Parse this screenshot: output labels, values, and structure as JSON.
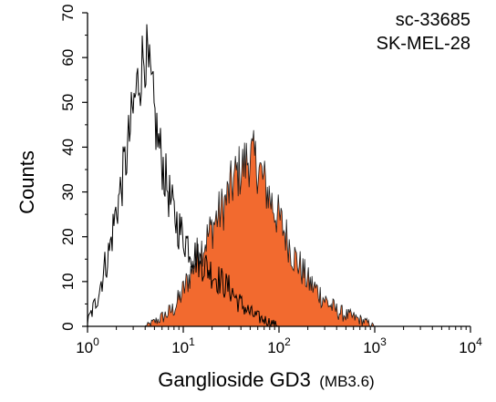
{
  "chart_data": {
    "type": "area",
    "title": "",
    "annotations": [
      "sc-33685",
      "SK-MEL-28"
    ],
    "xlabel": "Ganglioside GD3",
    "xlabel_suffix": "(MB3.6)",
    "ylabel": "Counts",
    "x_scale": "log",
    "xlim": [
      1,
      10000
    ],
    "ylim": [
      0,
      70
    ],
    "x_ticks": [
      1,
      10,
      100,
      1000,
      10000
    ],
    "x_tick_labels": [
      {
        "base": "10",
        "exp": "0"
      },
      {
        "base": "10",
        "exp": "1"
      },
      {
        "base": "10",
        "exp": "2"
      },
      {
        "base": "10",
        "exp": "3"
      },
      {
        "base": "10",
        "exp": "4"
      }
    ],
    "y_ticks": [
      0,
      10,
      20,
      30,
      40,
      50,
      60,
      70
    ],
    "grid": false,
    "legend": "none",
    "series": [
      {
        "style": "outline",
        "color": "#000000",
        "x": [
          1.0,
          1.1,
          1.2,
          1.35,
          1.5,
          1.7,
          1.85,
          2.0,
          2.2,
          2.4,
          2.6,
          2.8,
          3.0,
          3.2,
          3.4,
          3.6,
          3.8,
          4.0,
          4.3,
          4.7,
          5.0,
          5.5,
          6.0,
          6.5,
          7.0,
          7.5,
          8.0,
          9.0,
          10,
          11,
          12,
          13,
          14,
          16,
          18,
          20,
          22,
          25,
          28,
          32,
          36,
          40,
          45,
          50,
          60,
          70,
          80,
          90,
          100
        ],
        "y": [
          1,
          3,
          5,
          9,
          13,
          17,
          22,
          26,
          30,
          35,
          39,
          44,
          48,
          52,
          55,
          57,
          60,
          62,
          57,
          52,
          47,
          41,
          37,
          33,
          30,
          27,
          25,
          22,
          20,
          19,
          17,
          16,
          15,
          14,
          13,
          12,
          11,
          10,
          9,
          8,
          6,
          5,
          4,
          3,
          2,
          1.5,
          1,
          0.6,
          0
        ]
      },
      {
        "style": "filled",
        "color": "#f26a2f",
        "x": [
          4.0,
          5.0,
          6.0,
          7.0,
          8.0,
          9.0,
          10,
          11,
          12,
          13,
          14,
          15,
          16,
          18,
          20,
          22,
          25,
          28,
          30,
          33,
          36,
          40,
          43,
          46,
          50,
          55,
          60,
          65,
          70,
          80,
          90,
          100,
          110,
          120,
          130,
          140,
          160,
          180,
          200,
          250,
          300,
          350,
          400,
          500,
          600,
          700,
          800,
          900,
          1000
        ],
        "y": [
          0,
          1,
          2,
          3,
          4,
          6,
          8,
          10,
          12,
          14,
          16,
          17,
          18,
          20,
          22,
          24,
          26,
          28,
          30,
          32,
          34,
          35,
          36,
          37,
          38,
          37,
          36,
          34,
          32,
          29,
          26,
          24,
          22,
          20,
          18,
          16,
          14,
          12,
          10,
          8,
          6,
          4.5,
          3.5,
          2.5,
          2,
          1.5,
          1,
          0.5,
          0
        ]
      }
    ]
  }
}
